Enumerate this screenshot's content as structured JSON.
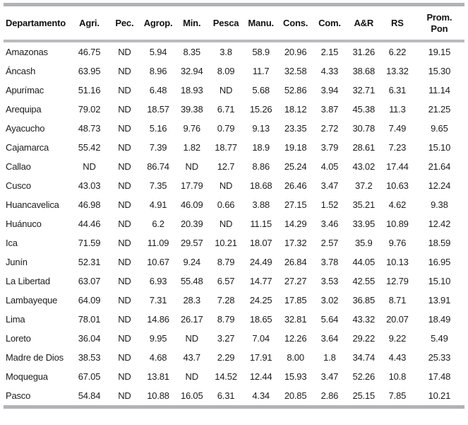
{
  "chart_data": {
    "type": "table",
    "columns": [
      "Departamento",
      "Agri.",
      "Pec.",
      "Agrop.",
      "Min.",
      "Pesca",
      "Manu.",
      "Cons.",
      "Com.",
      "A&R",
      "RS",
      "Prom.\nPon"
    ],
    "rows": [
      [
        "Amazonas",
        "46.75",
        "ND",
        "5.94",
        "8.35",
        "3.8",
        "58.9",
        "20.96",
        "2.15",
        "31.26",
        "6.22",
        "19.15"
      ],
      [
        "Áncash",
        "63.95",
        "ND",
        "8.96",
        "32.94",
        "8.09",
        "11.7",
        "32.58",
        "4.33",
        "38.68",
        "13.32",
        "15.30"
      ],
      [
        "Apurímac",
        "51.16",
        "ND",
        "6.48",
        "18.93",
        "ND",
        "5.68",
        "52.86",
        "3.94",
        "32.71",
        "6.31",
        "11.14"
      ],
      [
        "Arequipa",
        "79.02",
        "ND",
        "18.57",
        "39.38",
        "6.71",
        "15.26",
        "18.12",
        "3.87",
        "45.38",
        "11.3",
        "21.25"
      ],
      [
        "Ayacucho",
        "48.73",
        "ND",
        "5.16",
        "9.76",
        "0.79",
        "9.13",
        "23.35",
        "2.72",
        "30.78",
        "7.49",
        "9.65"
      ],
      [
        "Cajamarca",
        "55.42",
        "ND",
        "7.39",
        "1.82",
        "18.77",
        "18.9",
        "19.18",
        "3.79",
        "28.61",
        "7.23",
        "15.10"
      ],
      [
        "Callao",
        "ND",
        "ND",
        "86.74",
        "ND",
        "12.7",
        "8.86",
        "25.24",
        "4.05",
        "43.02",
        "17.44",
        "21.64"
      ],
      [
        "Cusco",
        "43.03",
        "ND",
        "7.35",
        "17.79",
        "ND",
        "18.68",
        "26.46",
        "3.47",
        "37.2",
        "10.63",
        "12.24"
      ],
      [
        "Huancavelica",
        "46.98",
        "ND",
        "4.91",
        "46.09",
        "0.66",
        "3.88",
        "27.15",
        "1.52",
        "35.21",
        "4.62",
        "9.38"
      ],
      [
        "Huánuco",
        "44.46",
        "ND",
        "6.2",
        "20.39",
        "ND",
        "11.15",
        "14.29",
        "3.46",
        "33.95",
        "10.89",
        "12.42"
      ],
      [
        "Ica",
        "71.59",
        "ND",
        "11.09",
        "29.57",
        "10.21",
        "18.07",
        "17.32",
        "2.57",
        "35.9",
        "9.76",
        "18.59"
      ],
      [
        "Junín",
        "52.31",
        "ND",
        "10.67",
        "9.24",
        "8.79",
        "24.49",
        "26.84",
        "3.78",
        "44.05",
        "10.13",
        "16.95"
      ],
      [
        "La Libertad",
        "63.07",
        "ND",
        "6.93",
        "55.48",
        "6.57",
        "14.77",
        "27.27",
        "3.53",
        "42.55",
        "12.79",
        "15.10"
      ],
      [
        "Lambayeque",
        "64.09",
        "ND",
        "7.31",
        "28.3",
        "7.28",
        "24.25",
        "17.85",
        "3.02",
        "36.85",
        "8.71",
        "13.91"
      ],
      [
        "Lima",
        "78.01",
        "ND",
        "14.86",
        "26.17",
        "8.79",
        "18.65",
        "32.81",
        "5.64",
        "43.32",
        "20.07",
        "18.49"
      ],
      [
        "Loreto",
        "36.04",
        "ND",
        "9.95",
        "ND",
        "3.27",
        "7.04",
        "12.26",
        "3.64",
        "29.22",
        "9.22",
        "5.49"
      ],
      [
        "Madre de Dios",
        "38.53",
        "ND",
        "4.68",
        "43.7",
        "2.29",
        "17.91",
        "8.00",
        "1.8",
        "34.74",
        "4.43",
        "25.33"
      ],
      [
        "Moquegua",
        "67.05",
        "ND",
        "13.81",
        "ND",
        "14.52",
        "12.44",
        "15.93",
        "3.47",
        "52.26",
        "10.8",
        "17.48"
      ],
      [
        "Pasco",
        "54.84",
        "ND",
        "10.88",
        "16.05",
        "6.31",
        "4.34",
        "20.85",
        "2.86",
        "25.15",
        "7.85",
        "10.21"
      ]
    ]
  }
}
